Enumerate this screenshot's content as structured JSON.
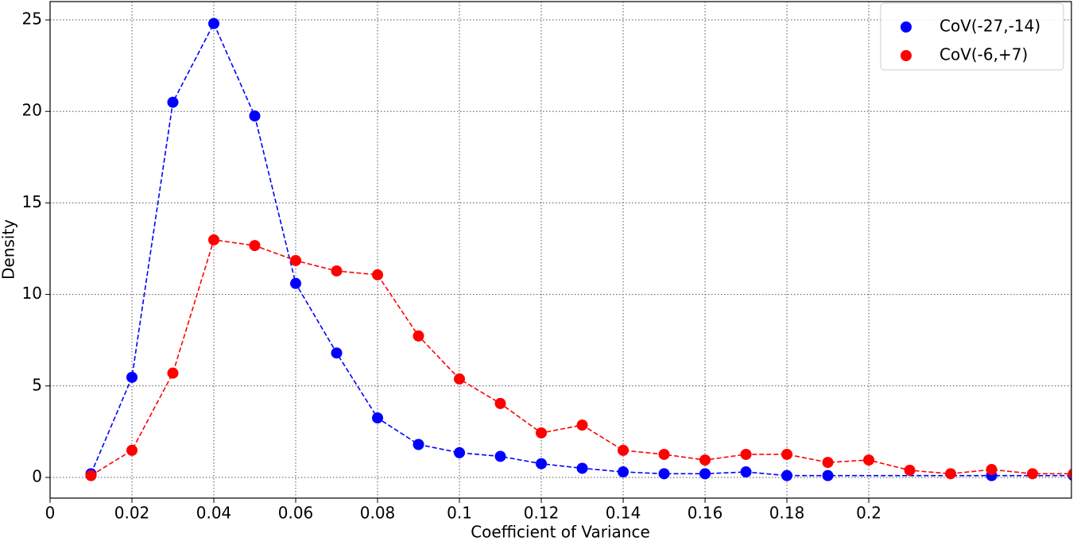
{
  "chart_data": {
    "type": "line",
    "x_label": "Coefficient of Variance",
    "y_label": "Density",
    "series": [
      {
        "name": "CoV(-27,-14)",
        "color": "#0000ff",
        "x": [
          0.01,
          0.02,
          0.03,
          0.04,
          0.05,
          0.06,
          0.07,
          0.08,
          0.09,
          0.1,
          0.11,
          0.12,
          0.13,
          0.14,
          0.15,
          0.16,
          0.17,
          0.18,
          0.19,
          0.23,
          0.25
        ],
        "values": [
          0.2,
          5.47,
          20.5,
          24.8,
          19.75,
          10.6,
          6.8,
          3.25,
          1.8,
          1.35,
          1.15,
          0.75,
          0.5,
          0.3,
          0.2,
          0.2,
          0.3,
          0.1,
          0.1,
          0.1,
          0.1
        ]
      },
      {
        "name": "CoV(-6,+7)",
        "color": "#ff0000",
        "x": [
          0.01,
          0.02,
          0.03,
          0.04,
          0.05,
          0.06,
          0.07,
          0.08,
          0.09,
          0.1,
          0.11,
          0.12,
          0.13,
          0.14,
          0.15,
          0.16,
          0.17,
          0.18,
          0.19,
          0.2,
          0.21,
          0.22,
          0.23,
          0.24,
          0.25
        ],
        "values": [
          0.1,
          1.48,
          5.7,
          12.98,
          12.67,
          11.85,
          11.28,
          11.07,
          7.73,
          5.38,
          4.04,
          2.43,
          2.86,
          1.48,
          1.26,
          0.95,
          1.26,
          1.26,
          0.82,
          0.95,
          0.39,
          0.2,
          0.43,
          0.2,
          0.2
        ]
      }
    ],
    "xlim": [
      0,
      0.2495
    ],
    "ylim": [
      -1.13,
      26
    ],
    "xticks": [
      0,
      0.02,
      0.04,
      0.06,
      0.08,
      0.1,
      0.12,
      0.14,
      0.16,
      0.18,
      0.2
    ],
    "yticks": [
      0,
      5,
      10,
      15,
      20,
      25
    ],
    "grid": true,
    "legend": "upper right"
  }
}
